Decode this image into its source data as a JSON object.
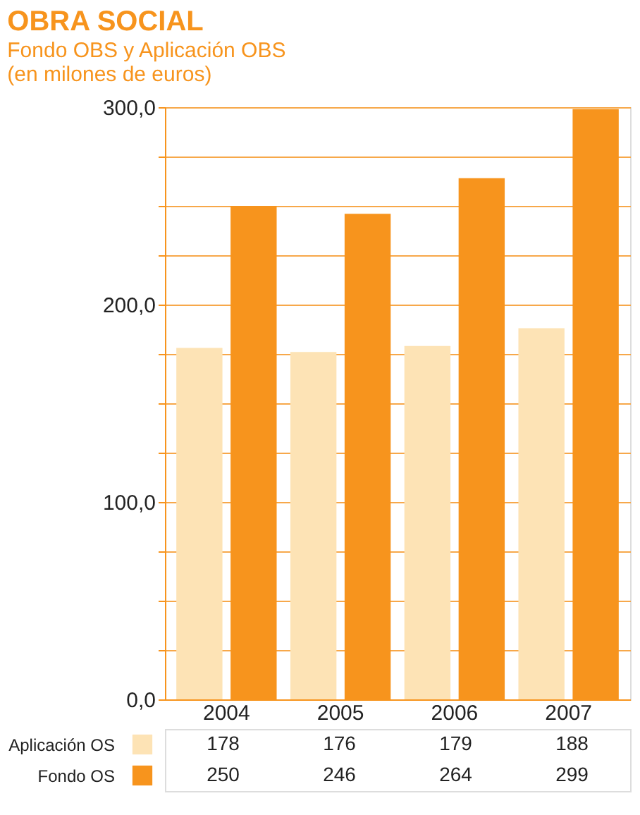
{
  "chart_data": {
    "type": "bar",
    "title": "OBRA SOCIAL",
    "subtitle": [
      "Fondo OBS y Aplicación OBS",
      "(en milones de euros)"
    ],
    "categories": [
      "2004",
      "2005",
      "2006",
      "2007"
    ],
    "series": [
      {
        "name": "Aplicación OS",
        "color": "#fde3b5",
        "values": [
          178,
          176,
          179,
          188
        ]
      },
      {
        "name": "Fondo OS",
        "color": "#f7941d",
        "values": [
          250,
          246,
          264,
          299
        ]
      }
    ],
    "ylim": [
      0,
      300
    ],
    "yticks": [
      {
        "value": 0,
        "label": "0,0"
      },
      {
        "value": 25,
        "label": null
      },
      {
        "value": 50,
        "label": null
      },
      {
        "value": 75,
        "label": null
      },
      {
        "value": 100,
        "label": "100,0"
      },
      {
        "value": 125,
        "label": null
      },
      {
        "value": 150,
        "label": null
      },
      {
        "value": 175,
        "label": null
      },
      {
        "value": 200,
        "label": "200,0"
      },
      {
        "value": 225,
        "label": null
      },
      {
        "value": 250,
        "label": null
      },
      {
        "value": 275,
        "label": null
      },
      {
        "value": 300,
        "label": "300,0"
      }
    ],
    "grid": "y",
    "legend": "bottom",
    "data_labels": true
  }
}
